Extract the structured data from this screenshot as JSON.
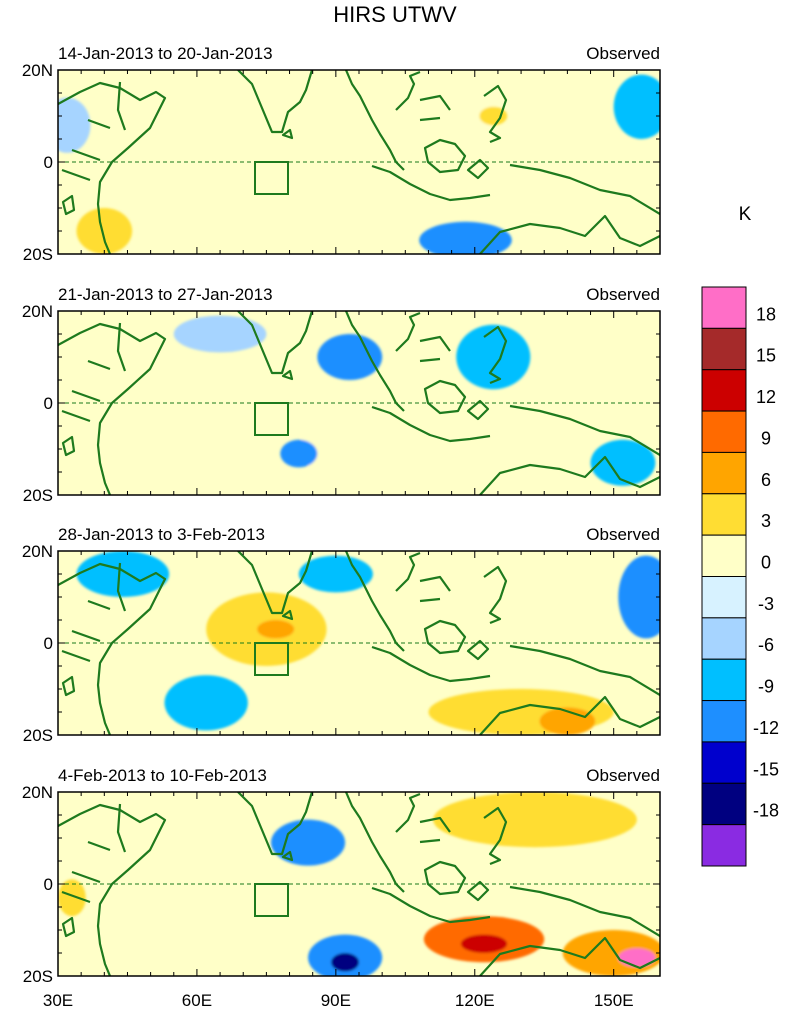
{
  "chart_data": {
    "type": "contour-map",
    "title": "HIRS UTWV",
    "unit_label": "K",
    "panel_tag": "Observed",
    "x_ticks": [
      "30E",
      "60E",
      "90E",
      "120E",
      "150E"
    ],
    "x_tick_values": [
      30,
      60,
      90,
      120,
      150
    ],
    "xlim": [
      30,
      160
    ],
    "y_ticks": [
      "20N",
      "0",
      "20S"
    ],
    "y_tick_values": [
      20,
      0,
      -20
    ],
    "ylim": [
      -20,
      20
    ],
    "colorbar": {
      "labels": [
        "18",
        "15",
        "12",
        "9",
        "6",
        "3",
        "0",
        "-3",
        "-6",
        "-9",
        "-12",
        "-15",
        "-18"
      ],
      "level_values": [
        18,
        15,
        12,
        9,
        6,
        3,
        0,
        -3,
        -6,
        -9,
        -12,
        -15,
        -18
      ],
      "colors": [
        "#ff6ec7",
        "#a52a2a",
        "#cc0000",
        "#ff6a00",
        "#ffa500",
        "#ffdd33",
        "#ffffc8",
        "#d7f2ff",
        "#a6d4ff",
        "#00bfff",
        "#1e8fff",
        "#0000cd",
        "#000080",
        "#8a2be2"
      ]
    },
    "box_region": {
      "lon": [
        75,
        80
      ],
      "lat": [
        -7,
        0
      ]
    },
    "panels": [
      {
        "date_range": "14-Jan-2013 to 20-Jan-2013",
        "anomalies": [
          {
            "lon": 40,
            "lat": -15,
            "rx": 6,
            "ry": 5,
            "value": 6
          },
          {
            "lon": 72,
            "lat": 3,
            "rx": 10,
            "ry": 5,
            "value": 4
          },
          {
            "lon": 86,
            "lat": -9,
            "rx": 6,
            "ry": 3,
            "value": 4
          },
          {
            "lon": 117,
            "lat": 11,
            "rx": 8,
            "ry": 5,
            "value": 5
          },
          {
            "lon": 124,
            "lat": 10,
            "rx": 3,
            "ry": 2,
            "value": 8
          },
          {
            "lon": 155,
            "lat": -10,
            "rx": 7,
            "ry": 6,
            "value": 5
          },
          {
            "lon": 118,
            "lat": -17,
            "rx": 10,
            "ry": 4,
            "value": -7
          },
          {
            "lon": 156,
            "lat": 12,
            "rx": 6,
            "ry": 7,
            "value": -6
          },
          {
            "lon": 32,
            "lat": 8,
            "rx": 5,
            "ry": 6,
            "value": -3
          }
        ]
      },
      {
        "date_range": "21-Jan-2013 to 27-Jan-2013",
        "anomalies": [
          {
            "lon": 93,
            "lat": 10,
            "rx": 7,
            "ry": 5,
            "value": -8
          },
          {
            "lon": 124,
            "lat": 10,
            "rx": 8,
            "ry": 7,
            "value": -6
          },
          {
            "lon": 66,
            "lat": -10,
            "rx": 8,
            "ry": 5,
            "value": 4
          },
          {
            "lon": 88,
            "lat": -10,
            "rx": 6,
            "ry": 5,
            "value": 4
          },
          {
            "lon": 150,
            "lat": 10,
            "rx": 8,
            "ry": 6,
            "value": 4
          },
          {
            "lon": 65,
            "lat": 15,
            "rx": 10,
            "ry": 4,
            "value": -3
          },
          {
            "lon": 82,
            "lat": -11,
            "rx": 4,
            "ry": 3,
            "value": -8
          },
          {
            "lon": 152,
            "lat": -13,
            "rx": 7,
            "ry": 5,
            "value": -6
          }
        ]
      },
      {
        "date_range": "28-Jan-2013 to 3-Feb-2013",
        "anomalies": [
          {
            "lon": 75,
            "lat": 3,
            "rx": 13,
            "ry": 8,
            "value": 7
          },
          {
            "lon": 77,
            "lat": 3,
            "rx": 4,
            "ry": 2,
            "value": 10
          },
          {
            "lon": 130,
            "lat": -15,
            "rx": 20,
            "ry": 5,
            "value": 7
          },
          {
            "lon": 140,
            "lat": -17,
            "rx": 6,
            "ry": 3,
            "value": 10
          },
          {
            "lon": 44,
            "lat": 15,
            "rx": 10,
            "ry": 5,
            "value": -6
          },
          {
            "lon": 90,
            "lat": 15,
            "rx": 8,
            "ry": 4,
            "value": -6
          },
          {
            "lon": 157,
            "lat": 10,
            "rx": 6,
            "ry": 9,
            "value": -9
          },
          {
            "lon": 62,
            "lat": -13,
            "rx": 9,
            "ry": 6,
            "value": -6
          },
          {
            "lon": 123,
            "lat": 12,
            "rx": 6,
            "ry": 4,
            "value": 4
          }
        ]
      },
      {
        "date_range": "4-Feb-2013 to 10-Feb-2013",
        "anomalies": [
          {
            "lon": 133,
            "lat": 14,
            "rx": 22,
            "ry": 6,
            "value": 6
          },
          {
            "lon": 122,
            "lat": -12,
            "rx": 13,
            "ry": 5,
            "value": 12
          },
          {
            "lon": 150,
            "lat": -15,
            "rx": 11,
            "ry": 5,
            "value": 11
          },
          {
            "lon": 122,
            "lat": -13,
            "rx": 5,
            "ry": 2,
            "value": 15
          },
          {
            "lon": 155,
            "lat": -16,
            "rx": 4,
            "ry": 2,
            "value": 19
          },
          {
            "lon": 92,
            "lat": -16,
            "rx": 8,
            "ry": 5,
            "value": -9
          },
          {
            "lon": 92,
            "lat": -17,
            "rx": 3,
            "ry": 2,
            "value": -15
          },
          {
            "lon": 84,
            "lat": 9,
            "rx": 8,
            "ry": 5,
            "value": -7
          },
          {
            "lon": 64,
            "lat": -13,
            "rx": 6,
            "ry": 4,
            "value": 5
          },
          {
            "lon": 33,
            "lat": -3,
            "rx": 3,
            "ry": 4,
            "value": 6
          }
        ]
      }
    ]
  }
}
